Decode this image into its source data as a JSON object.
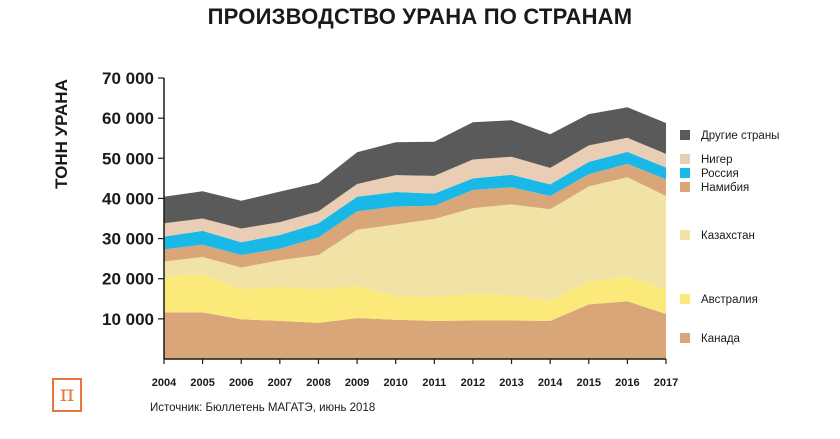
{
  "chart_data": {
    "type": "area",
    "stacked": true,
    "title": "ПРОИЗВОДСТВО УРАНА ПО СТРАНАМ",
    "ylabel": "ТОНН УРАНА",
    "xlabel": "",
    "ylim": [
      0,
      70000
    ],
    "y_ticks": [
      "10 000",
      "20 000",
      "30 000",
      "40 000",
      "50 000",
      "60 000",
      "70 000"
    ],
    "x": [
      "2004",
      "2005",
      "2006",
      "2007",
      "2008",
      "2009",
      "2010",
      "2011",
      "2012",
      "2013",
      "2014",
      "2015",
      "2016",
      "2017"
    ],
    "series": [
      {
        "name": "Канада",
        "color": "#d9a679",
        "values": [
          11600,
          11600,
          9900,
          9500,
          9000,
          10200,
          9800,
          9500,
          9600,
          9600,
          9500,
          13600,
          14400,
          11200
        ]
      },
      {
        "name": "Австралия",
        "color": "#fbe97a",
        "values": [
          9000,
          9500,
          7600,
          8500,
          8400,
          8000,
          5900,
          6000,
          6700,
          6300,
          5000,
          5600,
          6300,
          6000
        ]
      },
      {
        "name": "Казахстан",
        "color": "#f1e2a6",
        "values": [
          3700,
          4300,
          5300,
          6600,
          8500,
          14000,
          17800,
          19400,
          21300,
          22600,
          22800,
          23800,
          24600,
          23400
        ]
      },
      {
        "name": "Намибия",
        "color": "#d9a679",
        "values": [
          3000,
          3100,
          3100,
          2900,
          4400,
          4600,
          4500,
          3300,
          4500,
          4300,
          3300,
          3000,
          3300,
          4200
        ]
      },
      {
        "name": "Россия",
        "color": "#1ab8e6",
        "values": [
          3200,
          3400,
          3200,
          3400,
          3500,
          3600,
          3600,
          3000,
          2900,
          3100,
          2900,
          3100,
          3000,
          2900
        ]
      },
      {
        "name": "Нигер",
        "color": "#e9cdb5",
        "values": [
          3300,
          3100,
          3400,
          3200,
          3000,
          3200,
          4200,
          4400,
          4700,
          4500,
          4100,
          4100,
          3500,
          3400
        ]
      },
      {
        "name": "Другие страны",
        "color": "#5a5a5a",
        "values": [
          6600,
          6800,
          6900,
          7600,
          7100,
          7900,
          8200,
          8500,
          9300,
          9100,
          8400,
          7800,
          7600,
          7700
        ]
      }
    ],
    "legend_order": [
      "Другие страны",
      "Нигер",
      "Россия",
      "Намибия",
      "Казахстан",
      "Австралия",
      "Канада"
    ],
    "grid": false,
    "legend_position": "right"
  },
  "footer": {
    "source": "Источник: Бюллетень МАГАТЭ, июнь 2018",
    "logo_glyph": "π"
  }
}
